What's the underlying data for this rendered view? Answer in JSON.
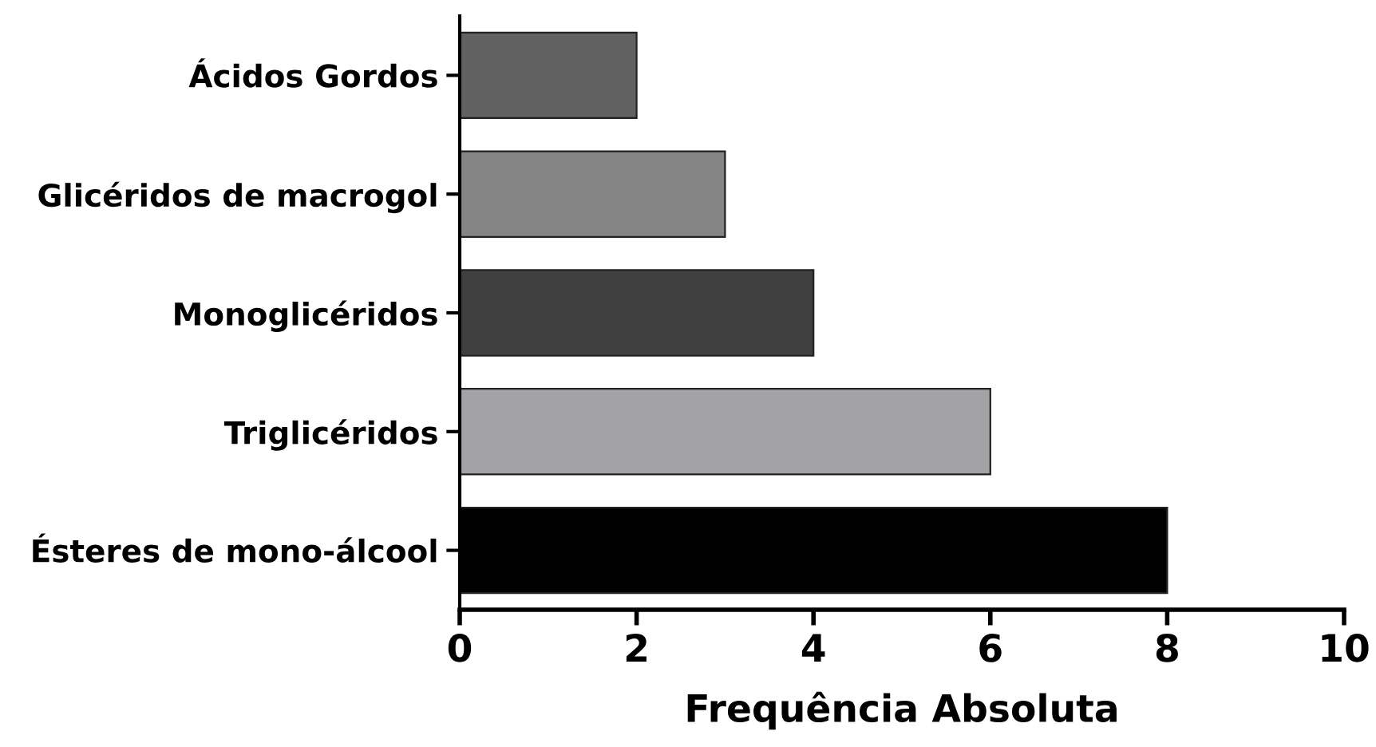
{
  "chart_data": {
    "type": "bar",
    "orientation": "horizontal",
    "xlabel": "Frequência Absoluta",
    "categories": [
      "Ácidos Gordos",
      "Glicéridos de macrogol",
      "Monoglicéridos",
      "Triglicéridos",
      "Ésteres de mono-álcool"
    ],
    "values": [
      2,
      3,
      4,
      6,
      8
    ],
    "colors": [
      "#616161",
      "#858585",
      "#404040",
      "#a3a3a6",
      "#000000"
    ],
    "xlim": [
      0,
      10
    ],
    "xticks": [
      0,
      2,
      4,
      6,
      8,
      10
    ],
    "grid": false,
    "legend": false
  }
}
